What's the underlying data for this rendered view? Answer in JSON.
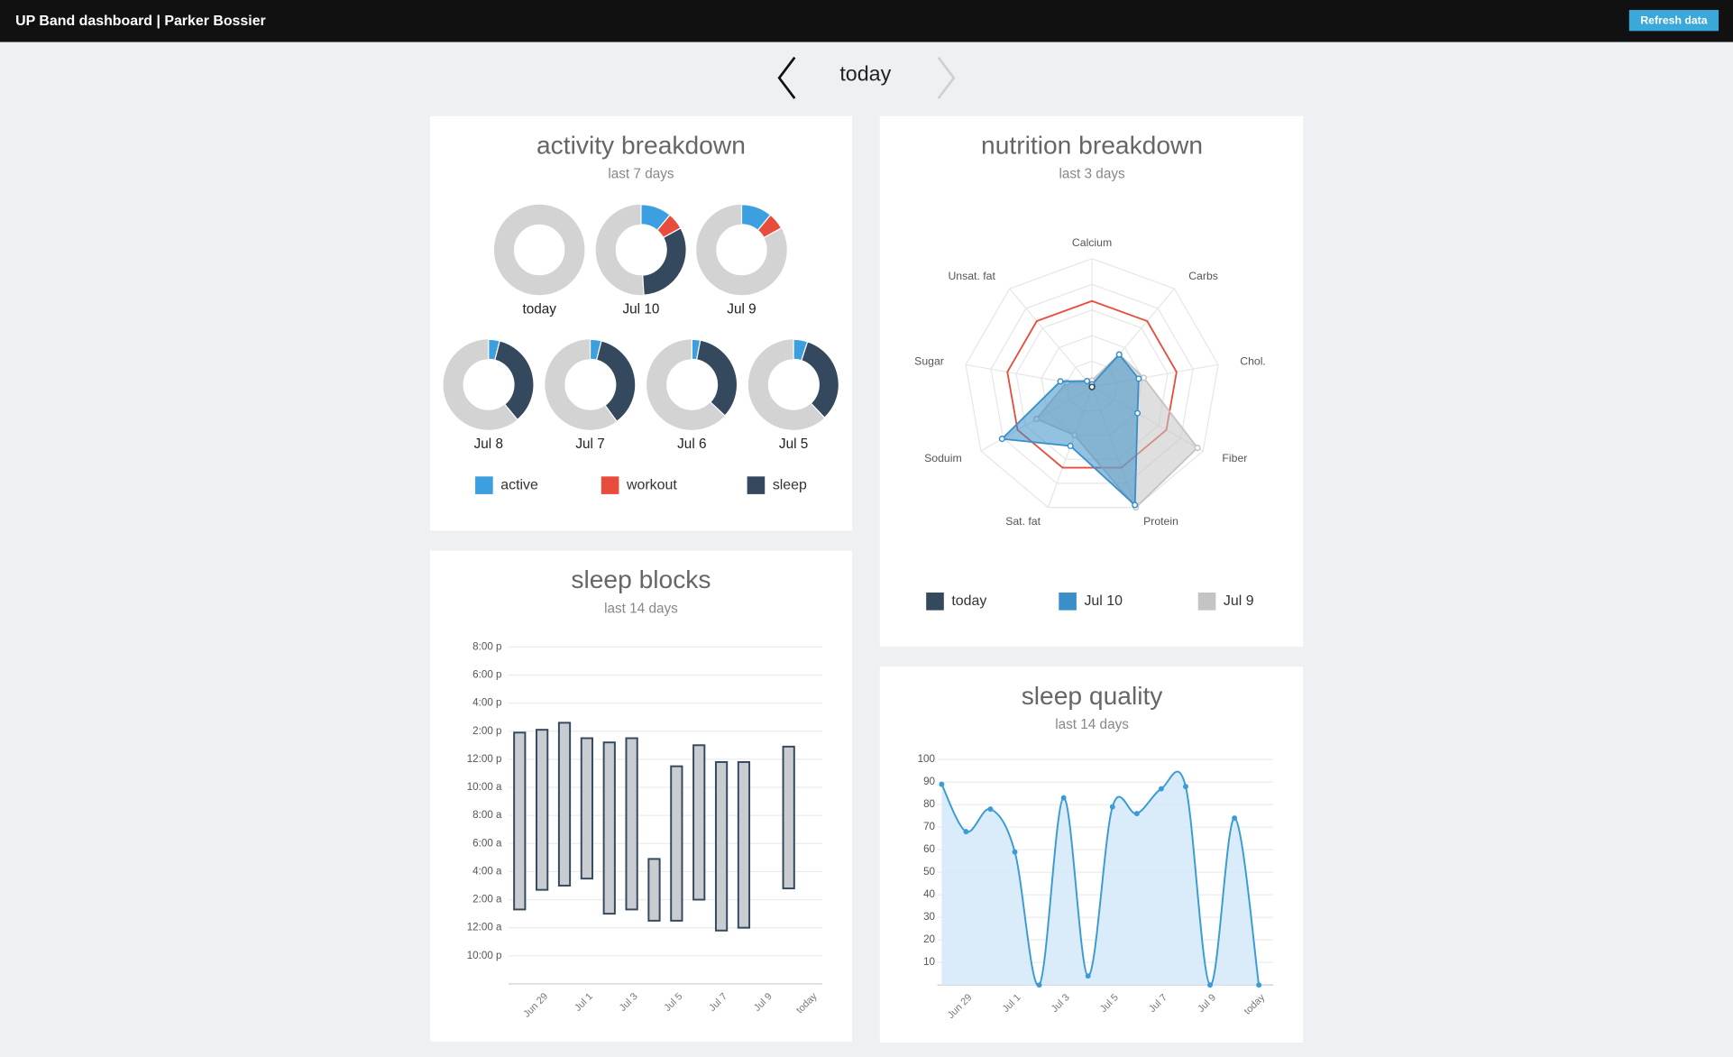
{
  "header": {
    "title": "UP Band dashboard | Parker Bossier",
    "button": "Refresh data"
  },
  "nav": {
    "label": "today"
  },
  "chart_data": [
    {
      "type": "donut",
      "title": "activity breakdown",
      "subtitle": "last 7 days",
      "categories": [
        "today",
        "Jul 10",
        "Jul 9",
        "Jul 8",
        "Jul 7",
        "Jul 6",
        "Jul 5"
      ],
      "series": [
        {
          "name": "active",
          "color": "#3b9fe0",
          "values": [
            0,
            11,
            11,
            4,
            4,
            3,
            5
          ]
        },
        {
          "name": "workout",
          "color": "#e74c3c",
          "values": [
            0,
            6,
            6,
            0,
            0,
            0,
            0
          ]
        },
        {
          "name": "sleep",
          "color": "#34495e",
          "values": [
            0,
            32,
            0,
            35,
            36,
            34,
            33
          ]
        }
      ],
      "ylim": [
        0,
        100
      ],
      "track_color": "#d3d3d3"
    },
    {
      "type": "radar",
      "title": "nutrition breakdown",
      "subtitle": "last 3 days",
      "categories": [
        "Calcium",
        "Carbs",
        "Chol.",
        "Fiber",
        "Protein",
        "Sat. fat",
        "Soduim",
        "Sugar",
        "Unsat. fat"
      ],
      "series": [
        {
          "name": "today",
          "color": "#34495e",
          "values": [
            0,
            0,
            0,
            0,
            0,
            0,
            0,
            0,
            0
          ]
        },
        {
          "name": "Jul 10",
          "color": "#3a8fc9",
          "values": [
            2,
            33,
            37,
            41,
            98,
            49,
            81,
            25,
            6
          ]
        },
        {
          "name": "Jul 9",
          "color": "#c4c4c4",
          "values": [
            5,
            33,
            41,
            95,
            100,
            40,
            50,
            20,
            5
          ]
        }
      ],
      "reference": {
        "color": "#e74c3c",
        "values": [
          67,
          67,
          67,
          67,
          67,
          67,
          67,
          67,
          67
        ]
      },
      "ylim": [
        0,
        100
      ],
      "yticks": [
        20,
        40,
        60,
        80,
        100
      ]
    },
    {
      "type": "floating_bar",
      "title": "sleep blocks",
      "subtitle": "last 14 days",
      "categories": [
        null,
        "Jun 29",
        null,
        "Jul 1",
        null,
        "Jul 3",
        null,
        "Jul 5",
        null,
        "Jul 7",
        null,
        "Jul 9",
        null,
        "today"
      ],
      "start": [
        1.3,
        2.7,
        3.0,
        3.5,
        1.0,
        1.3,
        0.5,
        0.5,
        2.0,
        -0.2,
        0,
        null,
        2.8,
        null
      ],
      "end": [
        13.9,
        14.1,
        14.6,
        13.5,
        13.2,
        13.5,
        4.9,
        11.5,
        13.0,
        11.8,
        11.8,
        null,
        12.9,
        null
      ],
      "color": "#c9cdd2",
      "edge_color": "#34495e",
      "ylim": [
        -4,
        21
      ],
      "yticks": [
        {
          "value": -2,
          "label": "10:00 p"
        },
        {
          "value": 0,
          "label": "12:00 a"
        },
        {
          "value": 2,
          "label": "2:00 a"
        },
        {
          "value": 4,
          "label": "4:00 a"
        },
        {
          "value": 6,
          "label": "6:00 a"
        },
        {
          "value": 8,
          "label": "8:00 a"
        },
        {
          "value": 10,
          "label": "10:00 a"
        },
        {
          "value": 12,
          "label": "12:00 p"
        },
        {
          "value": 14,
          "label": "2:00 p"
        },
        {
          "value": 16,
          "label": "4:00 p"
        },
        {
          "value": 18,
          "label": "6:00 p"
        },
        {
          "value": 20,
          "label": "8:00 p"
        }
      ],
      "grid": true
    },
    {
      "type": "line",
      "title": "sleep quality",
      "subtitle": "last 14 days",
      "categories": [
        null,
        "Jun 29",
        null,
        "Jul 1",
        null,
        "Jul 3",
        null,
        "Jul 5",
        null,
        "Jul 7",
        null,
        "Jul 9",
        null,
        "today"
      ],
      "values": [
        89,
        68,
        78,
        59,
        0,
        83,
        4,
        79,
        76,
        87,
        88,
        0,
        74,
        0
      ],
      "color": "#3a9bd5",
      "fill": "#d6e9f8",
      "ylim": [
        0,
        100
      ],
      "yticks": [
        10,
        20,
        30,
        40,
        50,
        60,
        70,
        80,
        90,
        100
      ],
      "grid": true
    }
  ]
}
